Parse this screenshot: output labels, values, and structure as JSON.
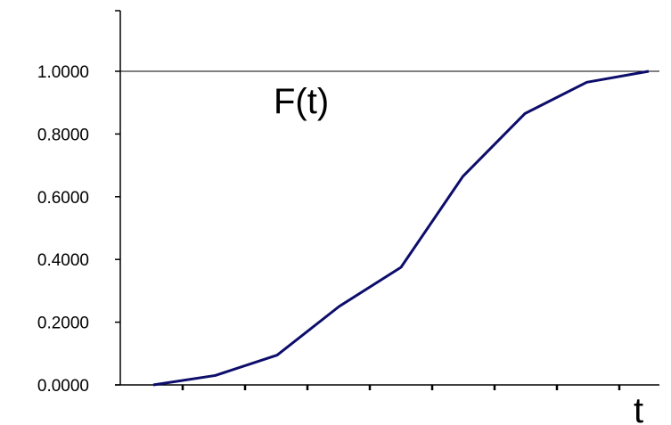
{
  "chart_data": {
    "type": "line",
    "series_label": "F(t)",
    "xlabel": "t",
    "ylabel": "",
    "ylim": [
      0,
      1.1
    ],
    "y_ticks": [
      "0.0000",
      "0.2000",
      "0.4000",
      "0.6000",
      "0.8000",
      "1.0000"
    ],
    "y_tick_values": [
      0,
      0.2,
      0.4,
      0.6,
      0.8,
      1.0
    ],
    "reference_line_y": 1.0,
    "x_tick_count": 8,
    "x": [
      0,
      1,
      2,
      3,
      4,
      5,
      6,
      7,
      8
    ],
    "values": [
      0.0,
      0.03,
      0.095,
      0.25,
      0.375,
      0.665,
      0.865,
      0.965,
      1.0
    ],
    "line_color": "#0d0d6b",
    "axis_color": "#000000",
    "grid": false
  }
}
